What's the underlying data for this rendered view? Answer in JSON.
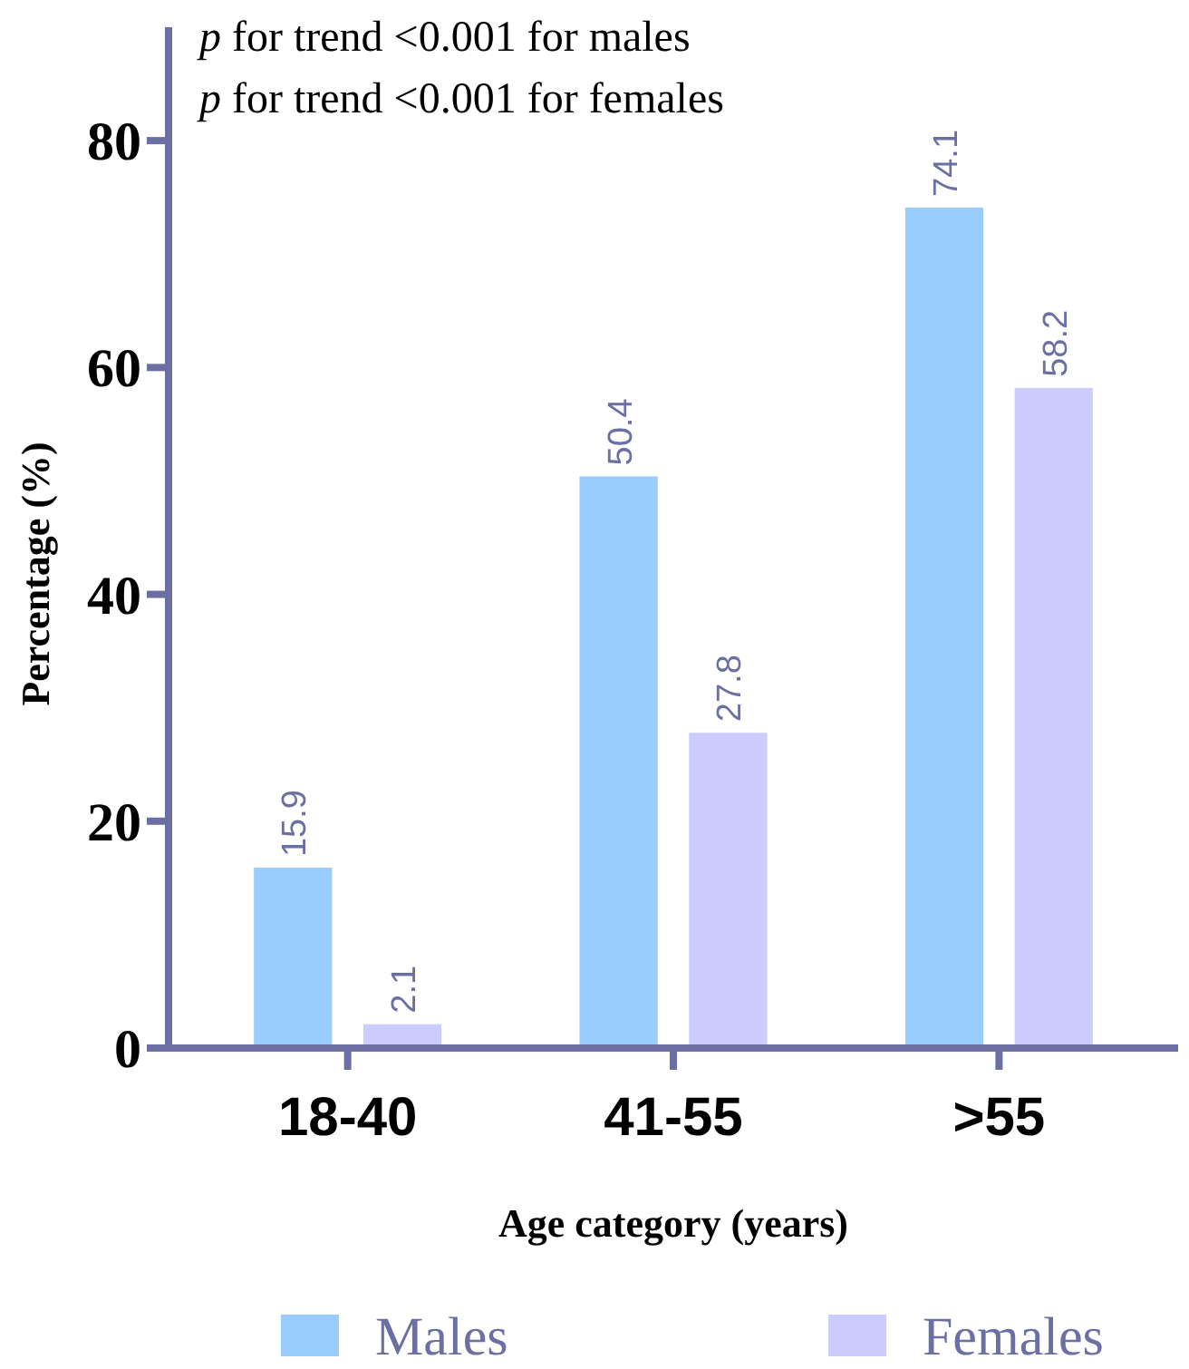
{
  "chart_data": {
    "type": "bar",
    "xlabel": "Age category (years)",
    "ylabel": "Percentage (%)",
    "categories": [
      "18-40",
      "41-55",
      ">55"
    ],
    "series": [
      {
        "name": "Males",
        "color": "#99ccff",
        "values": [
          15.9,
          50.4,
          74.1
        ]
      },
      {
        "name": "Females",
        "color": "#ccccff",
        "values": [
          2.1,
          27.8,
          58.2
        ]
      }
    ],
    "ylim": [
      0,
      90
    ],
    "yticks": [
      0,
      20,
      40,
      60,
      80
    ],
    "data_labels": true,
    "legend": "bottom",
    "grid": false,
    "annotations": [
      "p for trend <0.001 for males",
      "p for trend <0.001 for females"
    ]
  }
}
